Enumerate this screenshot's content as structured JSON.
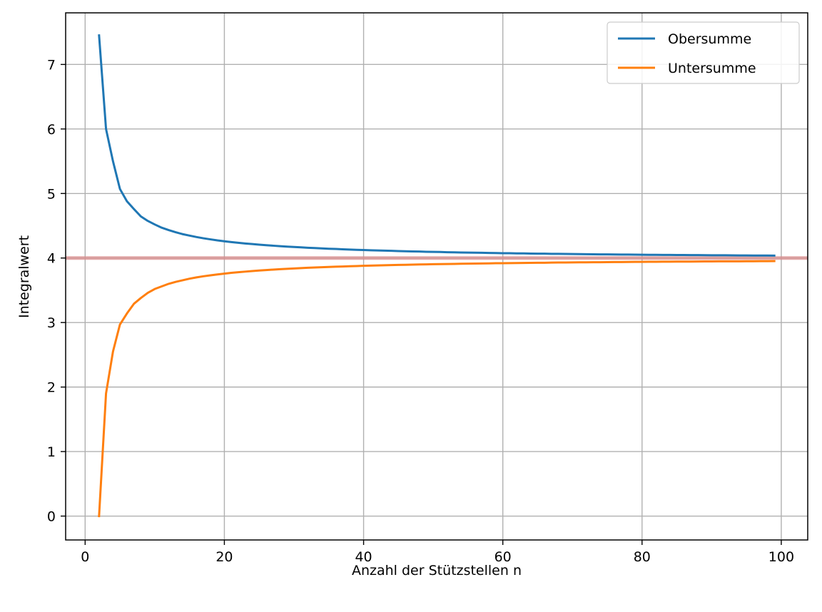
{
  "chart_data": {
    "type": "line",
    "title": "",
    "xlabel": "Anzahl der Stützstellen n",
    "ylabel": "Integralwert",
    "xlim": [
      -2.8,
      103.8
    ],
    "ylim": [
      -0.37,
      7.8
    ],
    "xticks": [
      0,
      20,
      40,
      60,
      80,
      100
    ],
    "yticks": [
      0,
      1,
      2,
      3,
      4,
      5,
      6,
      7
    ],
    "grid": true,
    "legend_position": "top-right",
    "reference_line": {
      "y": 4.0,
      "color": "#d98c8c"
    },
    "x": [
      2,
      3,
      4,
      5,
      6,
      7,
      8,
      9,
      10,
      11,
      12,
      13,
      14,
      15,
      16,
      17,
      18,
      19,
      20,
      21,
      22,
      23,
      24,
      25,
      26,
      27,
      28,
      29,
      30,
      31,
      32,
      33,
      34,
      35,
      36,
      37,
      38,
      39,
      40,
      41,
      42,
      43,
      44,
      45,
      46,
      47,
      48,
      49,
      50,
      51,
      52,
      53,
      54,
      55,
      56,
      57,
      58,
      59,
      60,
      61,
      62,
      63,
      64,
      65,
      66,
      67,
      68,
      69,
      70,
      71,
      72,
      73,
      74,
      75,
      76,
      77,
      78,
      79,
      80,
      81,
      82,
      83,
      84,
      85,
      86,
      87,
      88,
      89,
      90,
      91,
      92,
      93,
      94,
      95,
      96,
      97,
      98,
      99
    ],
    "series": [
      {
        "name": "Obersumme",
        "color": "#1f77b4",
        "values": [
          7.45,
          6.0,
          5.5,
          5.07,
          4.88,
          4.76,
          4.645,
          4.575,
          4.52,
          4.47,
          4.433,
          4.4,
          4.37,
          4.347,
          4.325,
          4.306,
          4.289,
          4.273,
          4.26,
          4.247,
          4.236,
          4.225,
          4.216,
          4.207,
          4.199,
          4.191,
          4.184,
          4.177,
          4.171,
          4.165,
          4.159,
          4.154,
          4.149,
          4.144,
          4.14,
          4.135,
          4.131,
          4.127,
          4.124,
          4.12,
          4.117,
          4.114,
          4.111,
          4.108,
          4.105,
          4.102,
          4.1,
          4.097,
          4.095,
          4.093,
          4.09,
          4.088,
          4.086,
          4.084,
          4.082,
          4.081,
          4.079,
          4.077,
          4.075,
          4.074,
          4.072,
          4.071,
          4.069,
          4.068,
          4.067,
          4.065,
          4.064,
          4.063,
          4.062,
          4.06,
          4.059,
          4.058,
          4.057,
          4.056,
          4.055,
          4.054,
          4.053,
          4.052,
          4.051,
          4.05,
          4.049,
          4.048,
          4.048,
          4.047,
          4.046,
          4.045,
          4.045,
          4.044,
          4.043,
          4.042,
          4.042,
          4.041,
          4.04,
          4.04,
          4.039,
          4.038,
          4.038,
          4.037
        ]
      },
      {
        "name": "Untersumme",
        "color": "#ff7f0e",
        "values": [
          0.0,
          1.9,
          2.55,
          2.97,
          3.14,
          3.29,
          3.38,
          3.46,
          3.52,
          3.56,
          3.6,
          3.63,
          3.655,
          3.68,
          3.7,
          3.717,
          3.732,
          3.745,
          3.758,
          3.77,
          3.78,
          3.789,
          3.798,
          3.806,
          3.813,
          3.82,
          3.827,
          3.833,
          3.838,
          3.844,
          3.849,
          3.853,
          3.858,
          3.862,
          3.866,
          3.869,
          3.873,
          3.876,
          3.879,
          3.882,
          3.885,
          3.888,
          3.89,
          3.893,
          3.895,
          3.897,
          3.9,
          3.902,
          3.904,
          3.906,
          3.907,
          3.909,
          3.911,
          3.913,
          3.914,
          3.916,
          3.917,
          3.919,
          3.92,
          3.921,
          3.923,
          3.924,
          3.925,
          3.926,
          3.927,
          3.929,
          3.93,
          3.931,
          3.932,
          3.933,
          3.934,
          3.935,
          3.935,
          3.936,
          3.937,
          3.938,
          3.939,
          3.94,
          3.94,
          3.941,
          3.942,
          3.943,
          3.943,
          3.944,
          3.945,
          3.945,
          3.946,
          3.947,
          3.947,
          3.948,
          3.948,
          3.949,
          3.949,
          3.95,
          3.95,
          3.951,
          3.951,
          3.952
        ]
      }
    ]
  }
}
